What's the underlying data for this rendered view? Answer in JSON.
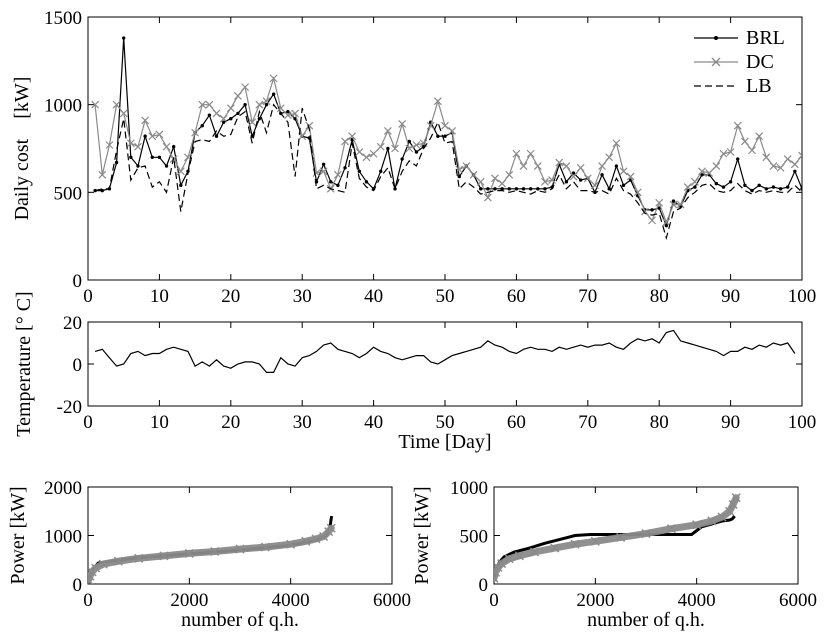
{
  "chart_data": [
    {
      "id": "daily-cost",
      "type": "line",
      "title": "",
      "xlabel": "",
      "ylabel": "Daily cost    [kW]",
      "xlim": [
        0,
        100
      ],
      "ylim": [
        0,
        1500
      ],
      "xticks": [
        0,
        10,
        20,
        30,
        40,
        50,
        60,
        70,
        80,
        90,
        100
      ],
      "yticks": [
        0,
        500,
        1000,
        1500
      ],
      "legend_position": "top-right",
      "series": [
        {
          "name": "BRL",
          "color": "#000000",
          "marker": "dot",
          "style": "solid",
          "x": [
            1,
            2,
            3,
            4,
            5,
            6,
            7,
            8,
            9,
            10,
            11,
            12,
            13,
            14,
            15,
            16,
            17,
            18,
            19,
            20,
            21,
            22,
            23,
            24,
            25,
            26,
            27,
            28,
            29,
            30,
            31,
            32,
            33,
            34,
            35,
            36,
            37,
            38,
            39,
            40,
            41,
            42,
            43,
            44,
            45,
            46,
            47,
            48,
            49,
            50,
            51,
            52,
            53,
            54,
            55,
            56,
            57,
            58,
            59,
            60,
            61,
            62,
            63,
            64,
            65,
            66,
            67,
            68,
            69,
            70,
            71,
            72,
            73,
            74,
            75,
            76,
            77,
            78,
            79,
            80,
            81,
            82,
            83,
            84,
            85,
            86,
            87,
            88,
            89,
            90,
            91,
            92,
            93,
            94,
            95,
            96,
            97,
            98,
            99,
            100
          ],
          "values": [
            510,
            510,
            520,
            670,
            1380,
            700,
            650,
            820,
            700,
            700,
            650,
            760,
            540,
            620,
            840,
            880,
            940,
            820,
            900,
            920,
            950,
            1000,
            820,
            920,
            1000,
            1060,
            950,
            960,
            920,
            820,
            810,
            560,
            660,
            560,
            540,
            640,
            800,
            620,
            560,
            520,
            620,
            750,
            520,
            690,
            790,
            730,
            760,
            900,
            820,
            820,
            840,
            590,
            650,
            600,
            520,
            520,
            520,
            520,
            520,
            520,
            520,
            520,
            520,
            520,
            530,
            660,
            560,
            610,
            570,
            580,
            500,
            600,
            520,
            650,
            540,
            570,
            480,
            400,
            400,
            410,
            310,
            450,
            420,
            510,
            530,
            600,
            600,
            550,
            530,
            560,
            690,
            540,
            510,
            540,
            520,
            530,
            520,
            530,
            620,
            520
          ]
        },
        {
          "name": "DC",
          "color": "#8a8a8a",
          "marker": "x",
          "style": "solid",
          "x": [
            1,
            2,
            3,
            4,
            5,
            6,
            7,
            8,
            9,
            10,
            11,
            12,
            13,
            14,
            15,
            16,
            17,
            18,
            19,
            20,
            21,
            22,
            23,
            24,
            25,
            26,
            27,
            28,
            29,
            30,
            31,
            32,
            33,
            34,
            35,
            36,
            37,
            38,
            39,
            40,
            41,
            42,
            43,
            44,
            45,
            46,
            47,
            48,
            49,
            50,
            51,
            52,
            53,
            54,
            55,
            56,
            57,
            58,
            59,
            60,
            61,
            62,
            63,
            64,
            65,
            66,
            67,
            68,
            69,
            70,
            71,
            72,
            73,
            74,
            75,
            76,
            77,
            78,
            79,
            80,
            81,
            82,
            83,
            84,
            85,
            86,
            87,
            88,
            89,
            90,
            91,
            92,
            93,
            94,
            95,
            96,
            97,
            98,
            99,
            100
          ],
          "values": [
            1000,
            600,
            770,
            1000,
            950,
            780,
            760,
            910,
            820,
            830,
            760,
            690,
            620,
            700,
            840,
            1000,
            1000,
            950,
            920,
            980,
            1050,
            1100,
            900,
            1000,
            1020,
            1150,
            980,
            940,
            950,
            820,
            880,
            610,
            620,
            520,
            600,
            790,
            820,
            730,
            700,
            720,
            760,
            850,
            750,
            890,
            750,
            770,
            780,
            880,
            1020,
            880,
            850,
            630,
            650,
            600,
            560,
            470,
            580,
            550,
            600,
            720,
            650,
            720,
            650,
            560,
            570,
            670,
            650,
            590,
            640,
            580,
            540,
            650,
            700,
            780,
            620,
            590,
            500,
            390,
            340,
            440,
            330,
            430,
            430,
            530,
            560,
            620,
            610,
            650,
            720,
            730,
            880,
            790,
            740,
            820,
            700,
            650,
            640,
            690,
            660,
            710
          ]
        },
        {
          "name": "LB",
          "color": "#000000",
          "marker": "none",
          "style": "dashed",
          "x": [
            1,
            2,
            3,
            4,
            5,
            6,
            7,
            8,
            9,
            10,
            11,
            12,
            13,
            14,
            15,
            16,
            17,
            18,
            19,
            20,
            21,
            22,
            23,
            24,
            25,
            26,
            27,
            28,
            29,
            30,
            31,
            32,
            33,
            34,
            35,
            36,
            37,
            38,
            39,
            40,
            41,
            42,
            43,
            44,
            45,
            46,
            47,
            48,
            49,
            50,
            51,
            52,
            53,
            54,
            55,
            56,
            57,
            58,
            59,
            60,
            61,
            62,
            63,
            64,
            65,
            66,
            67,
            68,
            69,
            70,
            71,
            72,
            73,
            74,
            75,
            76,
            77,
            78,
            79,
            80,
            81,
            82,
            83,
            84,
            85,
            86,
            87,
            88,
            89,
            90,
            91,
            92,
            93,
            94,
            95,
            96,
            97,
            98,
            99,
            100
          ],
          "values": [
            510,
            520,
            520,
            740,
            920,
            570,
            640,
            650,
            530,
            560,
            500,
            700,
            390,
            610,
            790,
            800,
            790,
            850,
            820,
            830,
            930,
            960,
            780,
            960,
            840,
            1000,
            950,
            900,
            590,
            980,
            860,
            520,
            540,
            520,
            510,
            500,
            780,
            580,
            530,
            510,
            590,
            640,
            520,
            620,
            680,
            650,
            750,
            810,
            900,
            780,
            790,
            520,
            560,
            530,
            490,
            500,
            510,
            510,
            500,
            510,
            500,
            490,
            510,
            500,
            520,
            600,
            520,
            560,
            510,
            510,
            500,
            510,
            490,
            580,
            510,
            490,
            440,
            380,
            370,
            380,
            240,
            390,
            410,
            470,
            500,
            540,
            550,
            510,
            500,
            510,
            550,
            510,
            490,
            510,
            500,
            510,
            500,
            500,
            540,
            500
          ]
        }
      ]
    },
    {
      "id": "temperature",
      "type": "line",
      "title": "",
      "xlabel": "Time [Day]",
      "ylabel": "Temperature [° C]",
      "xlim": [
        0,
        100
      ],
      "ylim": [
        -20,
        20
      ],
      "xticks": [
        0,
        10,
        20,
        30,
        40,
        50,
        60,
        70,
        80,
        90,
        100
      ],
      "yticks": [
        -20,
        0,
        20
      ],
      "series": [
        {
          "name": "Temperature",
          "color": "#000000",
          "style": "solid",
          "x": [
            1,
            2,
            3,
            4,
            5,
            6,
            7,
            8,
            9,
            10,
            11,
            12,
            13,
            14,
            15,
            16,
            17,
            18,
            19,
            20,
            21,
            22,
            23,
            24,
            25,
            26,
            27,
            28,
            29,
            30,
            31,
            32,
            33,
            34,
            35,
            36,
            37,
            38,
            39,
            40,
            41,
            42,
            43,
            44,
            45,
            46,
            47,
            48,
            49,
            50,
            51,
            52,
            53,
            54,
            55,
            56,
            57,
            58,
            59,
            60,
            61,
            62,
            63,
            64,
            65,
            66,
            67,
            68,
            69,
            70,
            71,
            72,
            73,
            74,
            75,
            76,
            77,
            78,
            79,
            80,
            81,
            82,
            83,
            84,
            85,
            86,
            87,
            88,
            89,
            90,
            91,
            92,
            93,
            94,
            95,
            96,
            97,
            98,
            99
          ],
          "values": [
            6,
            7,
            3,
            -1,
            0,
            5,
            6,
            4,
            5,
            5,
            7,
            8,
            7,
            6,
            -1,
            1,
            -1,
            2,
            -1,
            -2,
            0,
            1,
            1,
            0,
            -4,
            -4,
            3,
            0,
            -1,
            3,
            4,
            6,
            9,
            10,
            7,
            6,
            5,
            3,
            5,
            8,
            6,
            5,
            3,
            2,
            3,
            4,
            4,
            1,
            0,
            2,
            4,
            5,
            6,
            7,
            8,
            11,
            9,
            8,
            6,
            5,
            7,
            8,
            7,
            7,
            6,
            8,
            7,
            8,
            9,
            8,
            9,
            9,
            10,
            8,
            7,
            10,
            12,
            11,
            12,
            10,
            15,
            16,
            11,
            10,
            9,
            8,
            7,
            6,
            4,
            6,
            6,
            8,
            7,
            9,
            8,
            10,
            9,
            10,
            5
          ]
        }
      ]
    },
    {
      "id": "power-duration-brl",
      "type": "line",
      "title": "",
      "xlabel": "number of q.h.",
      "ylabel": "Power [kW]",
      "xlim": [
        0,
        6000
      ],
      "ylim": [
        0,
        2000
      ],
      "xticks": [
        0,
        2000,
        4000,
        6000
      ],
      "yticks": [
        0,
        1000,
        2000
      ],
      "series": [
        {
          "name": "BRL",
          "color": "#000000",
          "style": "solid",
          "x": [
            10,
            50,
            100,
            200,
            500,
            1000,
            2000,
            3000,
            4000,
            4500,
            4700,
            4750,
            4780,
            4800,
            4810
          ],
          "values": [
            60,
            200,
            300,
            430,
            480,
            540,
            620,
            700,
            800,
            900,
            1000,
            1100,
            1200,
            1350,
            1400
          ]
        },
        {
          "name": "DC",
          "color": "#8a8a8a",
          "style": "marker-x",
          "x": [
            10,
            40,
            80,
            150,
            300,
            600,
            1000,
            1500,
            2000,
            2500,
            3000,
            3500,
            4000,
            4300,
            4500,
            4650,
            4750,
            4800
          ],
          "values": [
            80,
            160,
            250,
            330,
            410,
            470,
            530,
            580,
            630,
            670,
            720,
            760,
            820,
            880,
            930,
            980,
            1080,
            1150
          ]
        }
      ]
    },
    {
      "id": "power-duration-day",
      "type": "line",
      "title": "",
      "xlabel": "number of q.h.",
      "ylabel": "Power [kW]",
      "xlim": [
        0,
        6000
      ],
      "ylim": [
        0,
        1000
      ],
      "xticks": [
        0,
        2000,
        4000,
        6000
      ],
      "yticks": [
        0,
        500,
        1000
      ],
      "series": [
        {
          "name": "BRL",
          "color": "#000000",
          "style": "solid",
          "x": [
            0,
            30,
            100,
            200,
            400,
            700,
            1000,
            1300,
            1600,
            1900,
            2200,
            2500,
            2800,
            3100,
            3400,
            3700,
            3900,
            4100,
            4300,
            4500,
            4650,
            4700,
            4750
          ],
          "values": [
            70,
            130,
            220,
            280,
            330,
            370,
            420,
            460,
            500,
            510,
            510,
            510,
            510,
            510,
            510,
            510,
            510,
            590,
            620,
            650,
            660,
            670,
            700
          ]
        },
        {
          "name": "DC",
          "color": "#8a8a8a",
          "style": "marker-x",
          "x": [
            0,
            30,
            80,
            150,
            300,
            500,
            800,
            1200,
            1600,
            2000,
            2500,
            3000,
            3500,
            4000,
            4300,
            4500,
            4650,
            4720,
            4780
          ],
          "values": [
            60,
            120,
            170,
            210,
            260,
            290,
            330,
            370,
            410,
            440,
            480,
            520,
            570,
            610,
            650,
            690,
            750,
            820,
            890
          ]
        }
      ]
    }
  ]
}
